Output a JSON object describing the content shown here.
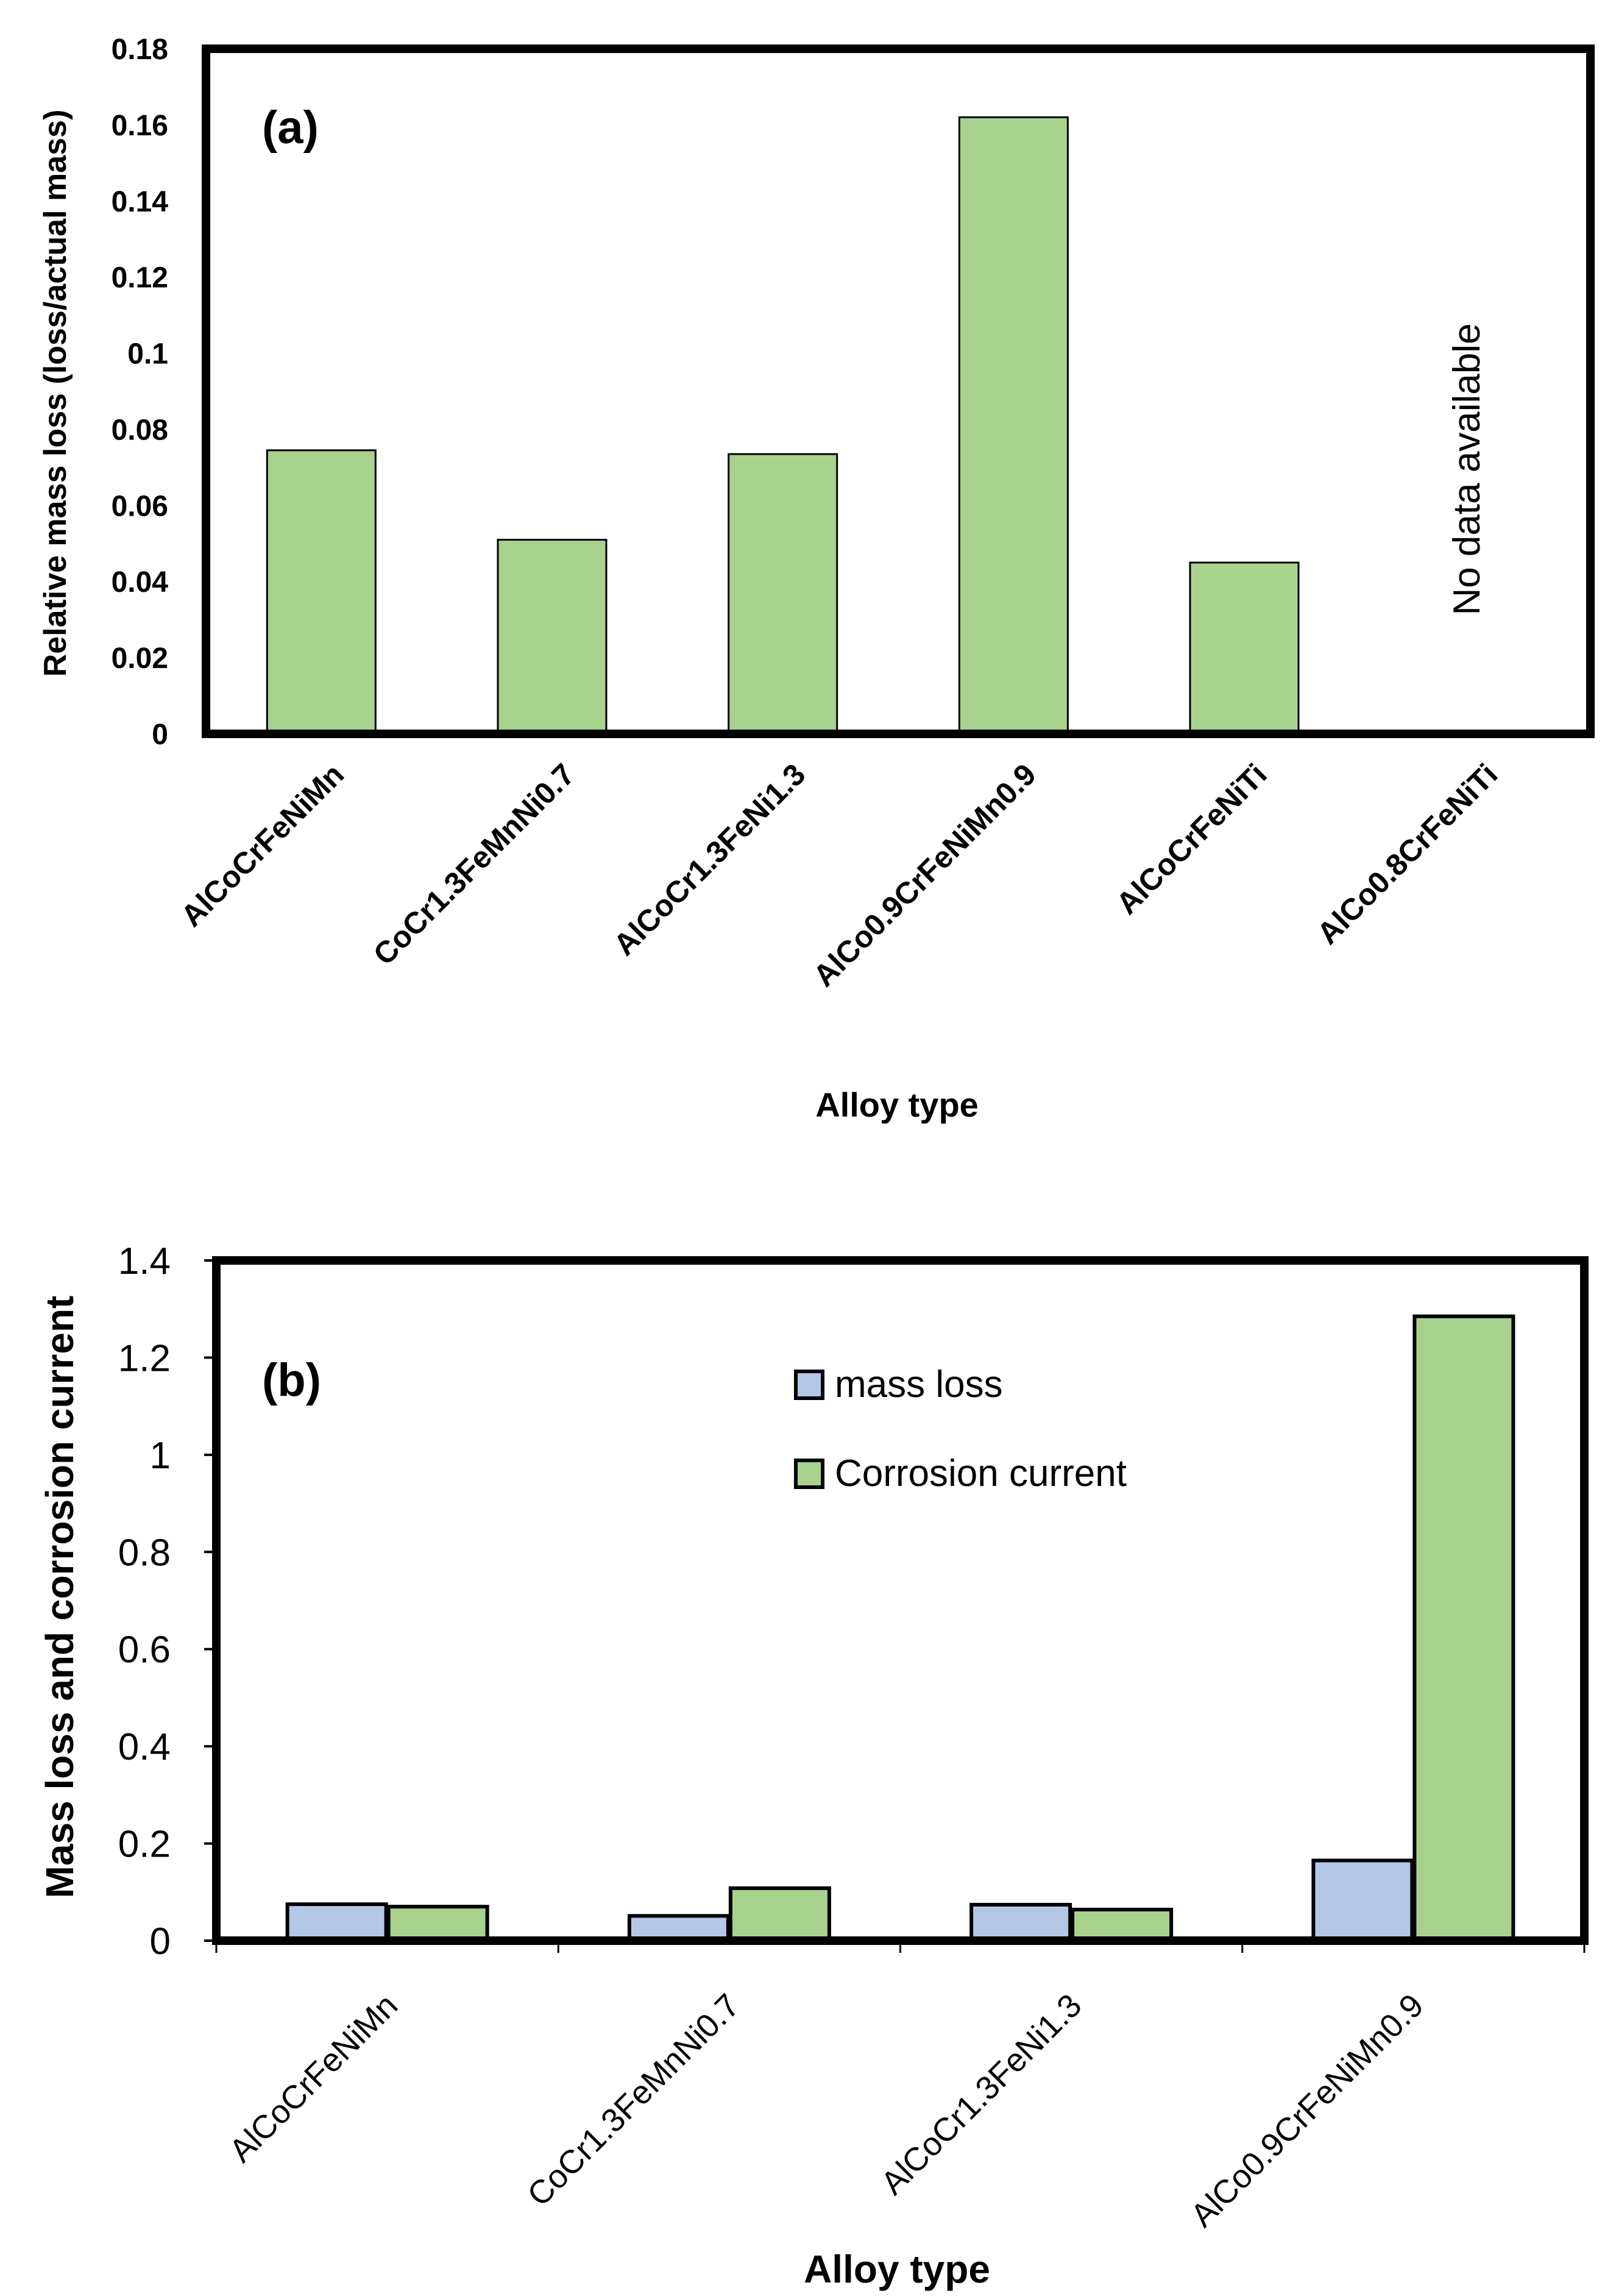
{
  "chart_data": [
    {
      "type": "bar",
      "panel_label": "(a)",
      "xlabel": "Alloy type",
      "ylabel": "Relative mass loss (loss/actual mass)",
      "ylim": [
        0,
        0.18
      ],
      "yticks": [
        "0",
        "0.02",
        "0.04",
        "0.06",
        "0.08",
        "0.1",
        "0.12",
        "0.14",
        "0.16",
        "0.18"
      ],
      "categories": [
        "AlCoCrFeNiMn",
        "CoCr1.3FeMnNi0.7",
        "AlCoCr1.3FeNi1.3",
        "AlCo0.9CrFeNiMn0.9",
        "AlCoCrFeNiTi",
        "AlCo0.8CrFeNiTi"
      ],
      "values": [
        0.0745,
        0.051,
        0.0735,
        0.162,
        0.045,
        null
      ],
      "annotation": "No data available",
      "bar_color": "#a9d18e"
    },
    {
      "type": "bar",
      "panel_label": "(b)",
      "xlabel": "Alloy type",
      "ylabel": "Mass loss and corrosion current",
      "ylim": [
        0,
        1.4
      ],
      "yticks": [
        "0",
        "0.2",
        "0.4",
        "0.6",
        "0.8",
        "1",
        "1.2",
        "1.4"
      ],
      "categories": [
        "AlCoCrFeNiMn",
        "CoCr1.3FeMnNi0.7",
        "AlCoCr1.3FeNi1.3",
        "AlCo0.9CrFeNiMn0.9"
      ],
      "series": [
        {
          "name": "mass loss",
          "color": "#b4c7e7",
          "values": [
            0.075,
            0.051,
            0.074,
            0.165
          ]
        },
        {
          "name": "Corrosion current",
          "color": "#a9d18e",
          "values": [
            0.07,
            0.108,
            0.064,
            1.285
          ]
        }
      ]
    }
  ]
}
